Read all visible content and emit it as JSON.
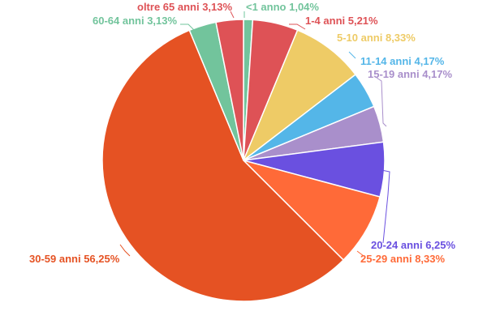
{
  "chart_data": {
    "type": "pie",
    "title": "",
    "slices": [
      {
        "label": "<1 anno 1,04%",
        "category": "<1 anno",
        "value": 1.04,
        "color": "#72c49c"
      },
      {
        "label": "1-4 anni 5,21%",
        "category": "1-4 anni",
        "value": 5.21,
        "color": "#de5256"
      },
      {
        "label": "5-10 anni 8,33%",
        "category": "5-10 anni",
        "value": 8.33,
        "color": "#eecb66"
      },
      {
        "label": "11-14 anni 4,17%",
        "category": "11-14 anni",
        "value": 4.17,
        "color": "#54b6e8"
      },
      {
        "label": "15-19 anni 4,17%",
        "category": "15-19 anni",
        "value": 4.17,
        "color": "#a98fcb"
      },
      {
        "label": "20-24 anni 6,25%",
        "category": "20-24 anni",
        "value": 6.25,
        "color": "#6a50e0"
      },
      {
        "label": "25-29 anni 8,33%",
        "category": "25-29 anni",
        "value": 8.33,
        "color": "#ff6a38"
      },
      {
        "label": "30-59 anni 56,25%",
        "category": "30-59 anni",
        "value": 56.25,
        "color": "#e55223"
      },
      {
        "label": "60-64 anni 3,13%",
        "category": "60-64 anni",
        "value": 3.13,
        "color": "#72c49c"
      },
      {
        "label": "oltre 65 anni 3,13%",
        "category": "oltre 65 anni",
        "value": 3.13,
        "color": "#de5256"
      }
    ]
  }
}
